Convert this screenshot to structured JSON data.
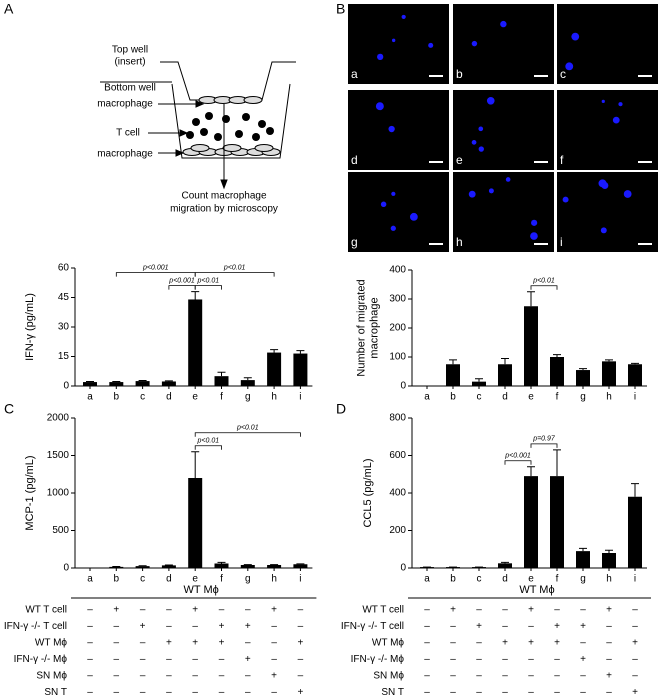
{
  "panel_labels": [
    "A",
    "B",
    "C",
    "D"
  ],
  "diagram": {
    "top_well": [
      "Top well",
      "(insert)"
    ],
    "bottom_well": "Bottom well",
    "macrophage_top": "macrophage",
    "t_cell": "T cell",
    "macrophage_bottom": "macrophage",
    "count": [
      "Count macrophage",
      "migration by microscopy"
    ]
  },
  "micrographs": {
    "labels": [
      "a",
      "b",
      "c",
      "d",
      "e",
      "f",
      "g",
      "h",
      "i"
    ]
  },
  "chart_data": [
    {
      "type": "bar",
      "ylabel": [
        "IFN-γ (pg/mL)"
      ],
      "color": "#000000",
      "categories": [
        "a",
        "b",
        "c",
        "d",
        "e",
        "f",
        "g",
        "h",
        "i"
      ],
      "values": [
        2,
        2,
        2.5,
        2.3,
        44,
        5,
        3,
        17,
        16.5
      ],
      "errors": [
        0.3,
        0.3,
        0.3,
        0.3,
        4,
        2,
        1.2,
        1.5,
        1.5
      ],
      "ylim": [
        0,
        60
      ],
      "yticks": [
        0,
        15,
        30,
        45,
        60
      ],
      "brackets": [
        {
          "from": "d",
          "to": "e",
          "label": "p<0.001"
        },
        {
          "from": "e",
          "to": "f",
          "label": "p<0.01"
        },
        {
          "from": "b",
          "to": "e",
          "label": "p<0.001"
        },
        {
          "from": "e",
          "to": "h",
          "label": "p<0.01"
        }
      ]
    },
    {
      "type": "bar",
      "ylabel": [
        "Number of migrated",
        "macrophage"
      ],
      "color": "#000000",
      "categories": [
        "a",
        "b",
        "c",
        "d",
        "e",
        "f",
        "g",
        "h",
        "i"
      ],
      "values": [
        0,
        75,
        15,
        75,
        275,
        100,
        55,
        85,
        75
      ],
      "errors": [
        0,
        15,
        10,
        20,
        50,
        8,
        5,
        5,
        3
      ],
      "ylim": [
        0,
        400
      ],
      "yticks": [
        0,
        100,
        200,
        300,
        400
      ],
      "brackets": [
        {
          "from": "e",
          "to": "f",
          "label": "p<0.01"
        }
      ]
    },
    {
      "type": "bar",
      "ylabel": [
        "MCP-1 (pg/mL)"
      ],
      "color": "#000000",
      "categories": [
        "a",
        "b",
        "c",
        "d",
        "e",
        "f",
        "g",
        "h",
        "i"
      ],
      "values": [
        0,
        15,
        25,
        35,
        1200,
        60,
        40,
        40,
        50
      ],
      "errors": [
        0,
        5,
        5,
        5,
        350,
        15,
        5,
        5,
        5
      ],
      "ylim": [
        0,
        2000
      ],
      "yticks": [
        0,
        500,
        1000,
        1500,
        2000
      ],
      "brackets": [
        {
          "from": "e",
          "to": "f",
          "label": "p<0.01"
        },
        {
          "from": "e",
          "to": "i",
          "label": "p<0.01"
        }
      ],
      "table": {
        "header": "WT Mϕ",
        "rows": [
          {
            "name": "WT T cell",
            "cells": [
              "–",
              "+",
              "–",
              "–",
              "+",
              "–",
              "–",
              "+",
              "–"
            ]
          },
          {
            "name": "IFN-γ -/- T cell",
            "cells": [
              "–",
              "–",
              "+",
              "–",
              "–",
              "+",
              "+",
              "–",
              "–"
            ]
          },
          {
            "name": "WT Mϕ",
            "cells": [
              "–",
              "–",
              "–",
              "+",
              "+",
              "+",
              "–",
              "–",
              "+"
            ]
          },
          {
            "name": "IFN-γ -/- Mϕ",
            "cells": [
              "–",
              "–",
              "–",
              "–",
              "–",
              "–",
              "+",
              "–",
              "–"
            ]
          },
          {
            "name": "SN Mϕ",
            "cells": [
              "–",
              "–",
              "–",
              "–",
              "–",
              "–",
              "–",
              "+",
              "–"
            ]
          },
          {
            "name": "SN T",
            "cells": [
              "–",
              "–",
              "–",
              "–",
              "–",
              "–",
              "–",
              "–",
              "+"
            ]
          }
        ]
      }
    },
    {
      "type": "bar",
      "ylabel": [
        "CCL5 (pg/mL)"
      ],
      "color": "#000000",
      "categories": [
        "a",
        "b",
        "c",
        "d",
        "e",
        "f",
        "g",
        "h",
        "i"
      ],
      "values": [
        5,
        5,
        5,
        25,
        490,
        490,
        90,
        80,
        380
      ],
      "errors": [
        0,
        0,
        0,
        5,
        50,
        140,
        15,
        15,
        70
      ],
      "ylim": [
        0,
        800
      ],
      "yticks": [
        0,
        200,
        400,
        600,
        800
      ],
      "brackets": [
        {
          "from": "d",
          "to": "e",
          "label": "p<0.001"
        },
        {
          "from": "e",
          "to": "f",
          "label": "p=0.97"
        }
      ],
      "table": {
        "header": "WT Mϕ",
        "rows": [
          {
            "name": "WT T cell",
            "cells": [
              "–",
              "+",
              "–",
              "–",
              "+",
              "–",
              "–",
              "+",
              "–"
            ]
          },
          {
            "name": "IFN-γ -/- T cell",
            "cells": [
              "–",
              "–",
              "+",
              "–",
              "–",
              "+",
              "+",
              "–",
              "–"
            ]
          },
          {
            "name": "WT Mϕ",
            "cells": [
              "–",
              "–",
              "–",
              "+",
              "+",
              "+",
              "–",
              "–",
              "+"
            ]
          },
          {
            "name": "IFN-γ -/- Mϕ",
            "cells": [
              "–",
              "–",
              "–",
              "–",
              "–",
              "–",
              "+",
              "–",
              "–"
            ]
          },
          {
            "name": "SN Mϕ",
            "cells": [
              "–",
              "–",
              "–",
              "–",
              "–",
              "–",
              "–",
              "+",
              "–"
            ]
          },
          {
            "name": "SN T",
            "cells": [
              "–",
              "–",
              "–",
              "–",
              "–",
              "–",
              "–",
              "–",
              "+"
            ]
          }
        ]
      }
    }
  ]
}
